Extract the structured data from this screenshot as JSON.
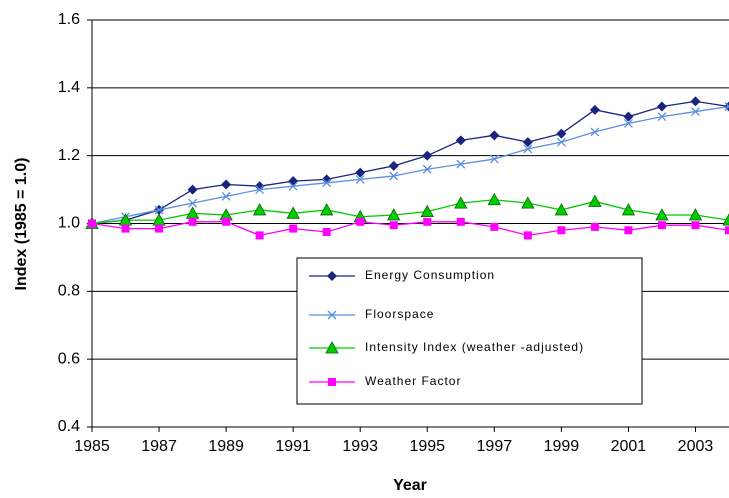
{
  "chart_data": {
    "type": "line",
    "xlabel": "Year",
    "ylabel": "Index (1985 = 1.0)",
    "x": [
      1985,
      1986,
      1987,
      1988,
      1989,
      1990,
      1991,
      1992,
      1993,
      1994,
      1995,
      1996,
      1997,
      1998,
      1999,
      2000,
      2001,
      2002,
      2003,
      2004
    ],
    "series": [
      {
        "name": "Energy Consumption",
        "color": "#1a237e",
        "marker": "diamond",
        "values": [
          1.0,
          1.01,
          1.04,
          1.1,
          1.115,
          1.11,
          1.125,
          1.13,
          1.15,
          1.17,
          1.2,
          1.245,
          1.26,
          1.24,
          1.265,
          1.335,
          1.315,
          1.345,
          1.36,
          1.345
        ]
      },
      {
        "name": "Floorspace",
        "color": "#5b8fe0",
        "marker": "x",
        "values": [
          1.0,
          1.02,
          1.04,
          1.06,
          1.08,
          1.1,
          1.11,
          1.12,
          1.13,
          1.14,
          1.16,
          1.175,
          1.19,
          1.22,
          1.24,
          1.27,
          1.295,
          1.315,
          1.33,
          1.345
        ]
      },
      {
        "name": "Intensity Index (weather -adjusted)",
        "color": "#00cc00",
        "marker": "triangle",
        "values": [
          1.0,
          1.01,
          1.01,
          1.03,
          1.025,
          1.04,
          1.03,
          1.04,
          1.02,
          1.025,
          1.035,
          1.06,
          1.07,
          1.06,
          1.04,
          1.065,
          1.04,
          1.025,
          1.025,
          1.01
        ]
      },
      {
        "name": "Weather Factor",
        "color": "#ff00ff",
        "marker": "square",
        "values": [
          1.0,
          0.985,
          0.985,
          1.005,
          1.005,
          0.965,
          0.985,
          0.975,
          1.005,
          0.995,
          1.005,
          1.005,
          0.99,
          0.965,
          0.98,
          0.99,
          0.98,
          0.995,
          0.995,
          0.98
        ]
      }
    ],
    "xlim": [
      1985,
      2004
    ],
    "xticks": [
      1985,
      1987,
      1989,
      1991,
      1993,
      1995,
      1997,
      1999,
      2001,
      2003
    ],
    "ylim": [
      0.4,
      1.6
    ],
    "yticks": [
      0.4,
      0.6,
      0.8,
      {
        "value": 1,
        "label": "1.0"
      },
      1.2,
      1.4,
      1.6
    ],
    "grid": true,
    "legend": "center"
  }
}
